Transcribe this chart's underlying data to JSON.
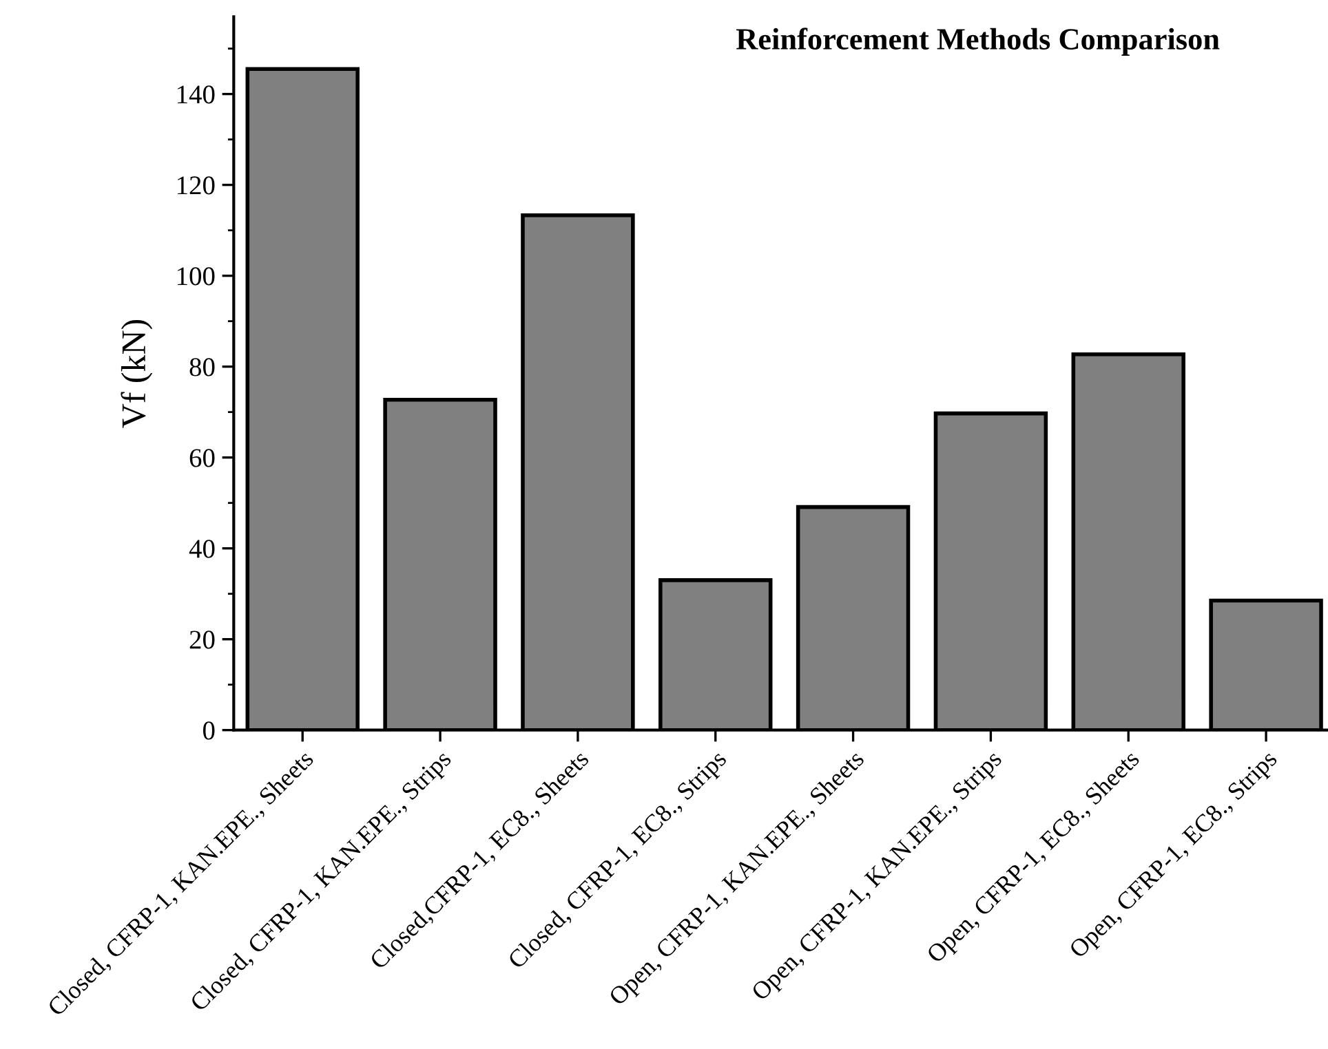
{
  "chart_data": {
    "type": "bar",
    "title": "Reinforcement Methods Comparison",
    "ylabel": "Vf (kN)",
    "categories": [
      "Closed, CFRP-1, KAN.EPE., Sheets",
      "Closed, CFRP-1, KAN.EPE., Strips",
      "Closed,CFRP-1, EC8., Sheets",
      "Closed, CFRP-1, EC8., Strips",
      "Open, CFRP-1, KAN.EPE., Sheets",
      "Open, CFRP-1, KAN.EPE., Strips",
      "Open, CFRP-1, EC8., Sheets",
      "Open, CFRP-1, EC8., Strips"
    ],
    "values": [
      145.5,
      72.7,
      113.3,
      33.0,
      49.1,
      69.7,
      82.7,
      28.5
    ],
    "color": "#808080",
    "ylim": [
      0,
      157
    ],
    "yticks": [
      0,
      20,
      40,
      60,
      80,
      100,
      120,
      140
    ],
    "grid": false
  }
}
